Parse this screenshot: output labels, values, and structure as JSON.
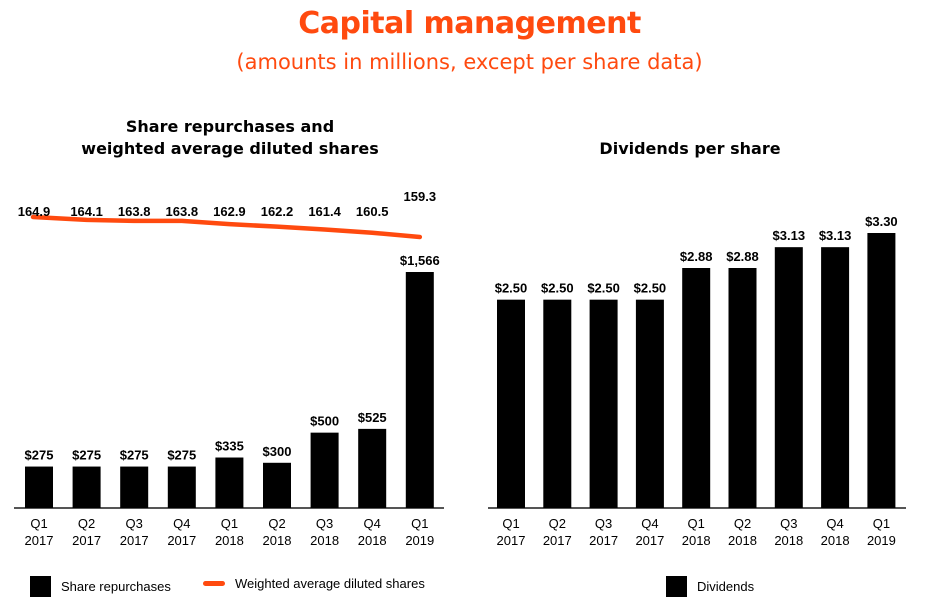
{
  "header": {
    "title": "Capital management",
    "subtitle": "(amounts in millions, except per share data)"
  },
  "colors": {
    "accent": "#ff4a0f",
    "bar": "#000000",
    "axis": "#555555"
  },
  "chart_data": [
    {
      "type": "bar",
      "title_line1": "Share repurchases and",
      "title_line2": "weighted average diluted shares",
      "categories": [
        {
          "q": "Q1",
          "y": "2017"
        },
        {
          "q": "Q2",
          "y": "2017"
        },
        {
          "q": "Q3",
          "y": "2017"
        },
        {
          "q": "Q4",
          "y": "2017"
        },
        {
          "q": "Q1",
          "y": "2018"
        },
        {
          "q": "Q2",
          "y": "2018"
        },
        {
          "q": "Q3",
          "y": "2018"
        },
        {
          "q": "Q4",
          "y": "2018"
        },
        {
          "q": "Q1",
          "y": "2019"
        }
      ],
      "series": [
        {
          "name": "Share repurchases",
          "kind": "bar",
          "values": [
            275,
            275,
            275,
            275,
            335,
            300,
            500,
            525,
            1566
          ],
          "labels": [
            "$275",
            "$275",
            "$275",
            "$275",
            "$335",
            "$300",
            "$500",
            "$525",
            "$1,566"
          ]
        },
        {
          "name": "Weighted average diluted shares",
          "kind": "line",
          "values": [
            164.9,
            164.1,
            163.8,
            163.8,
            162.9,
            162.2,
            161.4,
            160.5,
            159.3
          ],
          "labels": [
            "164.9",
            "164.1",
            "163.8",
            "163.8",
            "162.9",
            "162.2",
            "161.4",
            "160.5",
            "159.3"
          ]
        }
      ],
      "legend": [
        "Share repurchases",
        "Weighted average diluted shares"
      ],
      "legend_position": "bottom"
    },
    {
      "type": "bar",
      "title": "Dividends per share",
      "categories": [
        {
          "q": "Q1",
          "y": "2017"
        },
        {
          "q": "Q2",
          "y": "2017"
        },
        {
          "q": "Q3",
          "y": "2017"
        },
        {
          "q": "Q4",
          "y": "2017"
        },
        {
          "q": "Q1",
          "y": "2018"
        },
        {
          "q": "Q2",
          "y": "2018"
        },
        {
          "q": "Q3",
          "y": "2018"
        },
        {
          "q": "Q4",
          "y": "2018"
        },
        {
          "q": "Q1",
          "y": "2019"
        }
      ],
      "series": [
        {
          "name": "Dividends",
          "kind": "bar",
          "values": [
            2.5,
            2.5,
            2.5,
            2.5,
            2.88,
            2.88,
            3.13,
            3.13,
            3.3
          ],
          "labels": [
            "$2.50",
            "$2.50",
            "$2.50",
            "$2.50",
            "$2.88",
            "$2.88",
            "$3.13",
            "$3.13",
            "$3.30"
          ]
        }
      ],
      "legend": [
        "Dividends"
      ],
      "legend_position": "bottom"
    }
  ]
}
